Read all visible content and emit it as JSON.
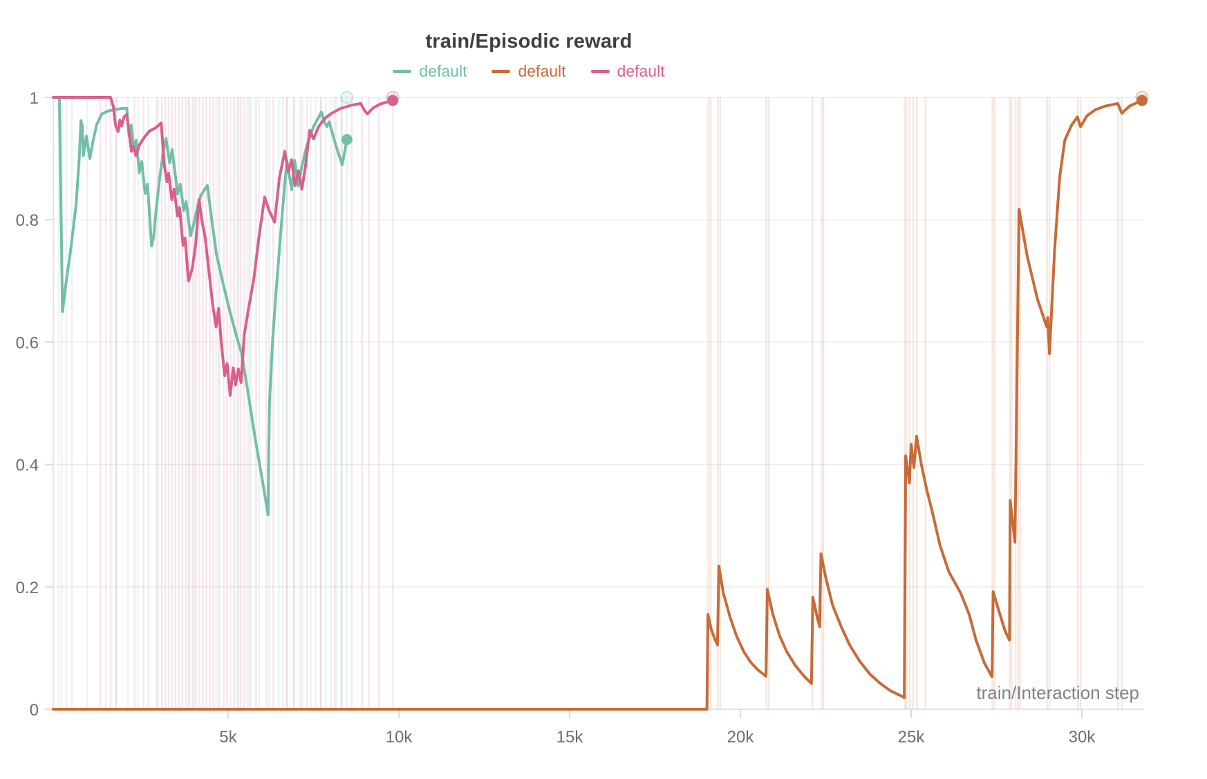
{
  "chart_data": {
    "type": "line",
    "title": "train/Episodic reward",
    "xlabel": "train/Interaction step",
    "ylabel": "",
    "grid": "horizontal",
    "legend_position": "top-center",
    "x_axis": {
      "min": -121,
      "max": 31821,
      "ticks": [
        {
          "step": 5000,
          "label": "5k"
        },
        {
          "step": 10000,
          "label": "10k"
        },
        {
          "step": 15000,
          "label": "15k"
        },
        {
          "step": 20000,
          "label": "20k"
        },
        {
          "step": 25000,
          "label": "25k"
        },
        {
          "step": 30000,
          "label": "30k"
        }
      ]
    },
    "y_axis": {
      "min": 0,
      "max": 1,
      "ticks": [
        {
          "v": 0,
          "label": "0"
        },
        {
          "v": 0.2,
          "label": "0.2"
        },
        {
          "v": 0.4,
          "label": "0.4"
        },
        {
          "v": 0.6,
          "label": "0.6"
        },
        {
          "v": 0.8,
          "label": "0.8"
        },
        {
          "v": 1,
          "label": "1"
        }
      ]
    },
    "series": [
      {
        "id": "default-teal",
        "name": "default",
        "color": "#73bfa6",
        "points": [
          [
            60,
            1.0
          ],
          [
            150,
            0.65
          ],
          [
            250,
            0.695
          ],
          [
            400,
            0.755
          ],
          [
            550,
            0.825
          ],
          [
            640,
            0.9
          ],
          [
            690,
            0.962
          ],
          [
            730,
            0.953
          ],
          [
            760,
            0.905
          ],
          [
            850,
            0.937
          ],
          [
            950,
            0.9
          ],
          [
            1050,
            0.93
          ],
          [
            1150,
            0.955
          ],
          [
            1300,
            0.973
          ],
          [
            1500,
            0.978
          ],
          [
            1900,
            0.982
          ],
          [
            2030,
            0.982
          ],
          [
            2100,
            0.937
          ],
          [
            2160,
            0.955
          ],
          [
            2240,
            0.916
          ],
          [
            2310,
            0.93
          ],
          [
            2400,
            0.877
          ],
          [
            2470,
            0.895
          ],
          [
            2570,
            0.843
          ],
          [
            2640,
            0.858
          ],
          [
            2720,
            0.79
          ],
          [
            2760,
            0.757
          ],
          [
            2820,
            0.772
          ],
          [
            2900,
            0.82
          ],
          [
            3000,
            0.87
          ],
          [
            3100,
            0.91
          ],
          [
            3180,
            0.933
          ],
          [
            3290,
            0.893
          ],
          [
            3360,
            0.915
          ],
          [
            3520,
            0.842
          ],
          [
            3600,
            0.858
          ],
          [
            3700,
            0.815
          ],
          [
            3770,
            0.83
          ],
          [
            3900,
            0.774
          ],
          [
            4000,
            0.795
          ],
          [
            4100,
            0.82
          ],
          [
            4200,
            0.84
          ],
          [
            4390,
            0.856
          ],
          [
            4520,
            0.8
          ],
          [
            4660,
            0.743
          ],
          [
            4860,
            0.694
          ],
          [
            5060,
            0.648
          ],
          [
            5260,
            0.607
          ],
          [
            5400,
            0.581
          ],
          [
            5610,
            0.508
          ],
          [
            5800,
            0.44
          ],
          [
            6000,
            0.375
          ],
          [
            6170,
            0.318
          ],
          [
            6190,
            0.42
          ],
          [
            6210,
            0.5
          ],
          [
            6300,
            0.6
          ],
          [
            6400,
            0.68
          ],
          [
            6500,
            0.75
          ],
          [
            6600,
            0.82
          ],
          [
            6720,
            0.897
          ],
          [
            6800,
            0.87
          ],
          [
            6860,
            0.849
          ],
          [
            6950,
            0.897
          ],
          [
            7050,
            0.855
          ],
          [
            7150,
            0.885
          ],
          [
            7300,
            0.92
          ],
          [
            7500,
            0.952
          ],
          [
            7730,
            0.976
          ],
          [
            7820,
            0.96
          ],
          [
            7890,
            0.952
          ],
          [
            7960,
            0.96
          ],
          [
            8100,
            0.932
          ],
          [
            8220,
            0.91
          ],
          [
            8340,
            0.89
          ],
          [
            8480,
            0.931
          ]
        ],
        "end_dot": [
          8480,
          0.931
        ],
        "raw_end_dot": [
          8480,
          1.0
        ],
        "raw_event_steps": [
          40,
          130,
          260,
          430,
          870,
          1730,
          2070,
          2360,
          2660,
          2950,
          3840,
          4000,
          4650,
          4760,
          5310,
          5560,
          5670,
          5900,
          6200,
          6480,
          6600,
          6720,
          6940,
          7180,
          7420,
          7560,
          7710,
          7860,
          8010,
          8170,
          8330,
          8480
        ]
      },
      {
        "id": "default-orange",
        "name": "default",
        "color": "#c76b38",
        "points": [
          [
            -121,
            0.0
          ],
          [
            19020,
            0.0
          ],
          [
            19050,
            0.155
          ],
          [
            19150,
            0.13
          ],
          [
            19250,
            0.115
          ],
          [
            19330,
            0.105
          ],
          [
            19370,
            0.234
          ],
          [
            19500,
            0.19
          ],
          [
            19700,
            0.15
          ],
          [
            19900,
            0.118
          ],
          [
            20100,
            0.094
          ],
          [
            20300,
            0.077
          ],
          [
            20500,
            0.065
          ],
          [
            20750,
            0.054
          ],
          [
            20790,
            0.196
          ],
          [
            20950,
            0.155
          ],
          [
            21150,
            0.12
          ],
          [
            21350,
            0.095
          ],
          [
            21600,
            0.072
          ],
          [
            21850,
            0.055
          ],
          [
            22080,
            0.042
          ],
          [
            22120,
            0.183
          ],
          [
            22250,
            0.15
          ],
          [
            22320,
            0.135
          ],
          [
            22360,
            0.254
          ],
          [
            22500,
            0.215
          ],
          [
            22700,
            0.17
          ],
          [
            22950,
            0.135
          ],
          [
            23200,
            0.105
          ],
          [
            23500,
            0.078
          ],
          [
            23800,
            0.057
          ],
          [
            24100,
            0.042
          ],
          [
            24400,
            0.03
          ],
          [
            24700,
            0.022
          ],
          [
            24800,
            0.019
          ],
          [
            24840,
            0.414
          ],
          [
            24950,
            0.37
          ],
          [
            25000,
            0.433
          ],
          [
            25080,
            0.395
          ],
          [
            25160,
            0.446
          ],
          [
            25300,
            0.4
          ],
          [
            25450,
            0.36
          ],
          [
            25600,
            0.327
          ],
          [
            25850,
            0.267
          ],
          [
            26100,
            0.225
          ],
          [
            26450,
            0.19
          ],
          [
            26700,
            0.155
          ],
          [
            26900,
            0.113
          ],
          [
            27150,
            0.075
          ],
          [
            27370,
            0.053
          ],
          [
            27400,
            0.192
          ],
          [
            27600,
            0.155
          ],
          [
            27750,
            0.128
          ],
          [
            27880,
            0.113
          ],
          [
            27900,
            0.341
          ],
          [
            28040,
            0.273
          ],
          [
            28160,
            0.817
          ],
          [
            28400,
            0.74
          ],
          [
            28700,
            0.67
          ],
          [
            28970,
            0.625
          ],
          [
            29000,
            0.64
          ],
          [
            29050,
            0.581
          ],
          [
            29200,
            0.75
          ],
          [
            29350,
            0.87
          ],
          [
            29500,
            0.93
          ],
          [
            29700,
            0.955
          ],
          [
            29870,
            0.968
          ],
          [
            29960,
            0.952
          ],
          [
            30150,
            0.97
          ],
          [
            30400,
            0.98
          ],
          [
            30700,
            0.986
          ],
          [
            31050,
            0.99
          ],
          [
            31170,
            0.974
          ],
          [
            31400,
            0.986
          ],
          [
            31760,
            0.995
          ]
        ],
        "end_dot": [
          31760,
          0.995
        ],
        "raw_end_dot": [
          31760,
          1.0
        ],
        "raw_event_steps": [
          19060,
          19130,
          19340,
          19410,
          20760,
          20830,
          22110,
          22380,
          22430,
          24810,
          24870,
          24960,
          25060,
          25170,
          25420,
          27380,
          27440,
          27890,
          27940,
          28060,
          28130,
          28190,
          28980,
          29050,
          29880,
          29960,
          31060,
          31170
        ]
      },
      {
        "id": "default-pink",
        "name": "default",
        "color": "#d7608c",
        "points": [
          [
            -121,
            1.0
          ],
          [
            1560,
            1.0
          ],
          [
            1640,
            0.985
          ],
          [
            1700,
            0.955
          ],
          [
            1780,
            0.944
          ],
          [
            1830,
            0.963
          ],
          [
            1880,
            0.953
          ],
          [
            1950,
            0.968
          ],
          [
            2030,
            0.972
          ],
          [
            2170,
            0.912
          ],
          [
            2230,
            0.92
          ],
          [
            2300,
            0.905
          ],
          [
            2400,
            0.922
          ],
          [
            2550,
            0.935
          ],
          [
            2700,
            0.945
          ],
          [
            2870,
            0.95
          ],
          [
            3040,
            0.958
          ],
          [
            3130,
            0.89
          ],
          [
            3210,
            0.862
          ],
          [
            3260,
            0.876
          ],
          [
            3350,
            0.833
          ],
          [
            3420,
            0.85
          ],
          [
            3520,
            0.806
          ],
          [
            3580,
            0.82
          ],
          [
            3680,
            0.758
          ],
          [
            3740,
            0.77
          ],
          [
            3840,
            0.7
          ],
          [
            3950,
            0.72
          ],
          [
            4050,
            0.76
          ],
          [
            4150,
            0.833
          ],
          [
            4230,
            0.8
          ],
          [
            4330,
            0.77
          ],
          [
            4450,
            0.71
          ],
          [
            4550,
            0.66
          ],
          [
            4650,
            0.625
          ],
          [
            4720,
            0.655
          ],
          [
            4800,
            0.6
          ],
          [
            4900,
            0.545
          ],
          [
            4970,
            0.565
          ],
          [
            5060,
            0.513
          ],
          [
            5150,
            0.558
          ],
          [
            5220,
            0.53
          ],
          [
            5300,
            0.556
          ],
          [
            5380,
            0.534
          ],
          [
            5470,
            0.611
          ],
          [
            5600,
            0.655
          ],
          [
            5750,
            0.702
          ],
          [
            5900,
            0.77
          ],
          [
            6070,
            0.837
          ],
          [
            6200,
            0.815
          ],
          [
            6360,
            0.796
          ],
          [
            6500,
            0.868
          ],
          [
            6660,
            0.912
          ],
          [
            6760,
            0.878
          ],
          [
            6860,
            0.898
          ],
          [
            6960,
            0.856
          ],
          [
            7060,
            0.88
          ],
          [
            7160,
            0.85
          ],
          [
            7260,
            0.885
          ],
          [
            7390,
            0.946
          ],
          [
            7500,
            0.932
          ],
          [
            7650,
            0.952
          ],
          [
            7820,
            0.965
          ],
          [
            8000,
            0.973
          ],
          [
            8300,
            0.982
          ],
          [
            8600,
            0.987
          ],
          [
            8880,
            0.99
          ],
          [
            9000,
            0.978
          ],
          [
            9080,
            0.973
          ],
          [
            9250,
            0.983
          ],
          [
            9450,
            0.989
          ],
          [
            9820,
            0.995
          ]
        ],
        "end_dot": [
          9820,
          0.995
        ],
        "raw_end_dot": [
          9820,
          1.0
        ],
        "raw_event_steps": [
          1260,
          1420,
          1560,
          1720,
          2260,
          2520,
          2910,
          3060,
          3160,
          3260,
          3360,
          3460,
          3560,
          3660,
          3760,
          3860,
          3960,
          4060,
          4160,
          4260,
          4360,
          4470,
          4570,
          4720,
          4870,
          4970,
          5070,
          5170,
          5270,
          5370,
          5470,
          5620,
          5820,
          6120,
          6320,
          6720,
          6920,
          7120,
          7320,
          7720,
          8120,
          8320,
          8620,
          8920,
          9120,
          9420,
          9820
        ]
      }
    ]
  },
  "legend": {
    "items": [
      {
        "label": "default",
        "color": "#73bfa6"
      },
      {
        "label": "default",
        "color": "#c76b38"
      },
      {
        "label": "default",
        "color": "#d7608c"
      }
    ]
  },
  "colors": {
    "title": "#3c4043",
    "tick_label": "#6a6e79",
    "axis_title": "#7d828c",
    "gridline": "#ececf0",
    "axis_line": "#e3e3e7",
    "tick_mark": "#d9d9de",
    "background": "#ffffff"
  }
}
